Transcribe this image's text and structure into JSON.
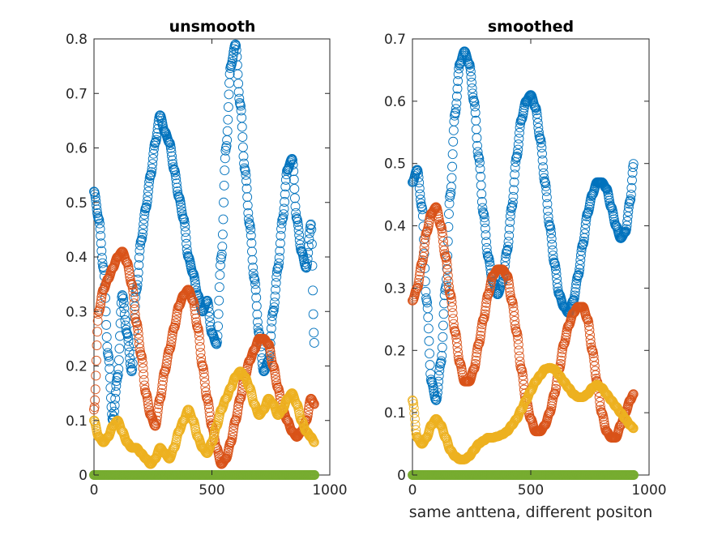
{
  "chart_data": [
    {
      "type": "scatter",
      "title": "unsmooth",
      "xlabel": "",
      "ylabel": "",
      "xlim": [
        0,
        1000
      ],
      "ylim": [
        0,
        0.8
      ],
      "xticks": [
        0,
        500,
        1000
      ],
      "xtick_labels": [
        "0",
        "500",
        "1000"
      ],
      "yticks": [
        0,
        0.1,
        0.2,
        0.3,
        0.4,
        0.5,
        0.6,
        0.7,
        0.8
      ],
      "ytick_labels": [
        "0",
        "0.1",
        "0.2",
        "0.3",
        "0.4",
        "0.5",
        "0.6",
        "0.7",
        "0.8"
      ],
      "grid": false,
      "marker": "circle-open",
      "x_range_points": [
        0,
        935
      ],
      "series": [
        {
          "color": "#0072BD",
          "x": [
            0,
            20,
            40,
            60,
            80,
            100,
            120,
            140,
            160,
            180,
            200,
            220,
            240,
            260,
            280,
            300,
            320,
            340,
            360,
            380,
            400,
            420,
            440,
            460,
            480,
            500,
            520,
            540,
            560,
            580,
            600,
            620,
            640,
            660,
            680,
            700,
            720,
            740,
            760,
            780,
            800,
            820,
            840,
            860,
            880,
            900,
            920,
            935
          ],
          "y": [
            0.52,
            0.47,
            0.38,
            0.22,
            0.1,
            0.18,
            0.33,
            0.26,
            0.19,
            0.34,
            0.43,
            0.49,
            0.55,
            0.61,
            0.66,
            0.63,
            0.61,
            0.56,
            0.51,
            0.47,
            0.4,
            0.37,
            0.33,
            0.3,
            0.32,
            0.26,
            0.24,
            0.4,
            0.6,
            0.75,
            0.79,
            0.68,
            0.56,
            0.46,
            0.36,
            0.26,
            0.19,
            0.21,
            0.3,
            0.38,
            0.47,
            0.56,
            0.58,
            0.47,
            0.41,
            0.38,
            0.46,
            0.24
          ]
        },
        {
          "color": "#D95319",
          "x": [
            0,
            20,
            40,
            60,
            80,
            100,
            120,
            140,
            160,
            180,
            200,
            220,
            240,
            260,
            280,
            300,
            320,
            340,
            360,
            380,
            400,
            420,
            440,
            460,
            480,
            500,
            520,
            540,
            560,
            580,
            600,
            620,
            640,
            660,
            680,
            700,
            720,
            740,
            760,
            780,
            800,
            820,
            840,
            860,
            880,
            900,
            920,
            935
          ],
          "y": [
            0.12,
            0.3,
            0.34,
            0.36,
            0.38,
            0.4,
            0.41,
            0.39,
            0.35,
            0.28,
            0.22,
            0.15,
            0.11,
            0.09,
            0.14,
            0.19,
            0.23,
            0.27,
            0.31,
            0.33,
            0.34,
            0.32,
            0.27,
            0.2,
            0.14,
            0.09,
            0.05,
            0.02,
            0.03,
            0.06,
            0.1,
            0.14,
            0.18,
            0.21,
            0.23,
            0.25,
            0.25,
            0.24,
            0.2,
            0.16,
            0.12,
            0.1,
            0.08,
            0.07,
            0.08,
            0.1,
            0.14,
            0.13
          ]
        },
        {
          "color": "#EDB120",
          "x": [
            0,
            20,
            40,
            60,
            80,
            100,
            120,
            140,
            160,
            180,
            200,
            220,
            240,
            260,
            280,
            300,
            320,
            340,
            360,
            380,
            400,
            420,
            440,
            460,
            480,
            500,
            520,
            540,
            560,
            580,
            600,
            620,
            640,
            660,
            680,
            700,
            720,
            740,
            760,
            780,
            800,
            820,
            840,
            860,
            880,
            900,
            920,
            935
          ],
          "y": [
            0.1,
            0.07,
            0.06,
            0.07,
            0.09,
            0.1,
            0.08,
            0.06,
            0.05,
            0.05,
            0.04,
            0.03,
            0.02,
            0.03,
            0.05,
            0.04,
            0.03,
            0.05,
            0.08,
            0.1,
            0.12,
            0.1,
            0.07,
            0.05,
            0.04,
            0.06,
            0.09,
            0.12,
            0.14,
            0.16,
            0.18,
            0.19,
            0.18,
            0.16,
            0.13,
            0.11,
            0.12,
            0.14,
            0.13,
            0.11,
            0.12,
            0.14,
            0.15,
            0.13,
            0.1,
            0.08,
            0.07,
            0.06
          ]
        },
        {
          "color": "#77AC30",
          "x": [
            0,
            935
          ],
          "y": [
            0,
            0
          ],
          "dense": true
        }
      ]
    },
    {
      "type": "scatter",
      "title": "smoothed",
      "xlabel": "same anttena, different positon",
      "ylabel": "",
      "xlim": [
        0,
        1000
      ],
      "ylim": [
        0,
        0.7
      ],
      "xticks": [
        0,
        500,
        1000
      ],
      "xtick_labels": [
        "0",
        "500",
        "1000"
      ],
      "yticks": [
        0,
        0.1,
        0.2,
        0.3,
        0.4,
        0.5,
        0.6,
        0.7
      ],
      "ytick_labels": [
        "0",
        "0.1",
        "0.2",
        "0.3",
        "0.4",
        "0.5",
        "0.6",
        "0.7"
      ],
      "grid": false,
      "marker": "circle-open",
      "x_range_points": [
        0,
        935
      ],
      "series": [
        {
          "color": "#0072BD",
          "x": [
            0,
            20,
            40,
            60,
            80,
            100,
            120,
            140,
            160,
            180,
            200,
            220,
            240,
            260,
            280,
            300,
            320,
            340,
            360,
            380,
            400,
            420,
            440,
            460,
            480,
            500,
            520,
            540,
            560,
            580,
            600,
            620,
            640,
            660,
            680,
            700,
            720,
            740,
            760,
            780,
            800,
            820,
            840,
            860,
            880,
            900,
            920,
            935
          ],
          "y": [
            0.47,
            0.49,
            0.43,
            0.28,
            0.15,
            0.12,
            0.18,
            0.3,
            0.45,
            0.58,
            0.66,
            0.68,
            0.66,
            0.6,
            0.51,
            0.42,
            0.35,
            0.31,
            0.29,
            0.31,
            0.36,
            0.43,
            0.51,
            0.57,
            0.6,
            0.61,
            0.59,
            0.54,
            0.47,
            0.4,
            0.34,
            0.29,
            0.27,
            0.26,
            0.28,
            0.32,
            0.37,
            0.42,
            0.45,
            0.47,
            0.47,
            0.46,
            0.43,
            0.4,
            0.38,
            0.39,
            0.44,
            0.5
          ]
        },
        {
          "color": "#D95319",
          "x": [
            0,
            20,
            40,
            60,
            80,
            100,
            120,
            140,
            160,
            180,
            200,
            220,
            240,
            260,
            280,
            300,
            320,
            340,
            360,
            380,
            400,
            420,
            440,
            460,
            480,
            500,
            520,
            540,
            560,
            580,
            600,
            620,
            640,
            660,
            680,
            700,
            720,
            740,
            760,
            780,
            800,
            820,
            840,
            860,
            880,
            900,
            920,
            935
          ],
          "y": [
            0.28,
            0.3,
            0.34,
            0.39,
            0.42,
            0.43,
            0.4,
            0.35,
            0.29,
            0.23,
            0.18,
            0.15,
            0.15,
            0.17,
            0.21,
            0.25,
            0.29,
            0.32,
            0.33,
            0.33,
            0.32,
            0.28,
            0.23,
            0.17,
            0.12,
            0.09,
            0.07,
            0.07,
            0.08,
            0.1,
            0.13,
            0.17,
            0.21,
            0.24,
            0.26,
            0.27,
            0.27,
            0.25,
            0.2,
            0.15,
            0.1,
            0.07,
            0.06,
            0.06,
            0.08,
            0.1,
            0.12,
            0.13
          ]
        },
        {
          "color": "#EDB120",
          "x": [
            0,
            20,
            40,
            60,
            80,
            100,
            120,
            140,
            160,
            180,
            200,
            220,
            240,
            260,
            280,
            300,
            320,
            340,
            360,
            380,
            400,
            420,
            440,
            460,
            480,
            500,
            520,
            540,
            560,
            580,
            600,
            620,
            640,
            660,
            680,
            700,
            720,
            740,
            760,
            780,
            800,
            820,
            840,
            860,
            880,
            900,
            920,
            935
          ],
          "y": [
            0.12,
            0.06,
            0.05,
            0.06,
            0.08,
            0.09,
            0.08,
            0.06,
            0.04,
            0.03,
            0.025,
            0.025,
            0.03,
            0.04,
            0.05,
            0.055,
            0.06,
            0.06,
            0.062,
            0.065,
            0.07,
            0.08,
            0.09,
            0.105,
            0.12,
            0.135,
            0.15,
            0.16,
            0.17,
            0.172,
            0.17,
            0.16,
            0.15,
            0.14,
            0.13,
            0.125,
            0.125,
            0.13,
            0.14,
            0.145,
            0.14,
            0.13,
            0.12,
            0.11,
            0.1,
            0.09,
            0.08,
            0.075
          ]
        },
        {
          "color": "#77AC30",
          "x": [
            0,
            935
          ],
          "y": [
            0,
            0
          ],
          "dense": true
        }
      ]
    }
  ]
}
